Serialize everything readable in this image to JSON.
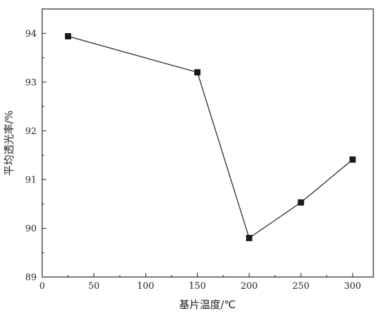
{
  "chart_data": {
    "type": "line",
    "title": "",
    "xlabel": "基片温度/℃",
    "ylabel": "平均透光率/%",
    "xlim": [
      0,
      320
    ],
    "ylim": [
      89,
      94.5
    ],
    "xticks": [
      0,
      50,
      100,
      150,
      200,
      250,
      300
    ],
    "yticks": [
      89,
      90,
      91,
      92,
      93,
      94
    ],
    "grid": false,
    "legend": "none",
    "series": [
      {
        "x": [
          25,
          150,
          200,
          250,
          300
        ],
        "y": [
          93.94,
          93.2,
          89.8,
          90.53,
          91.41
        ],
        "marker": "square",
        "color": "#1a1a1a"
      }
    ]
  }
}
